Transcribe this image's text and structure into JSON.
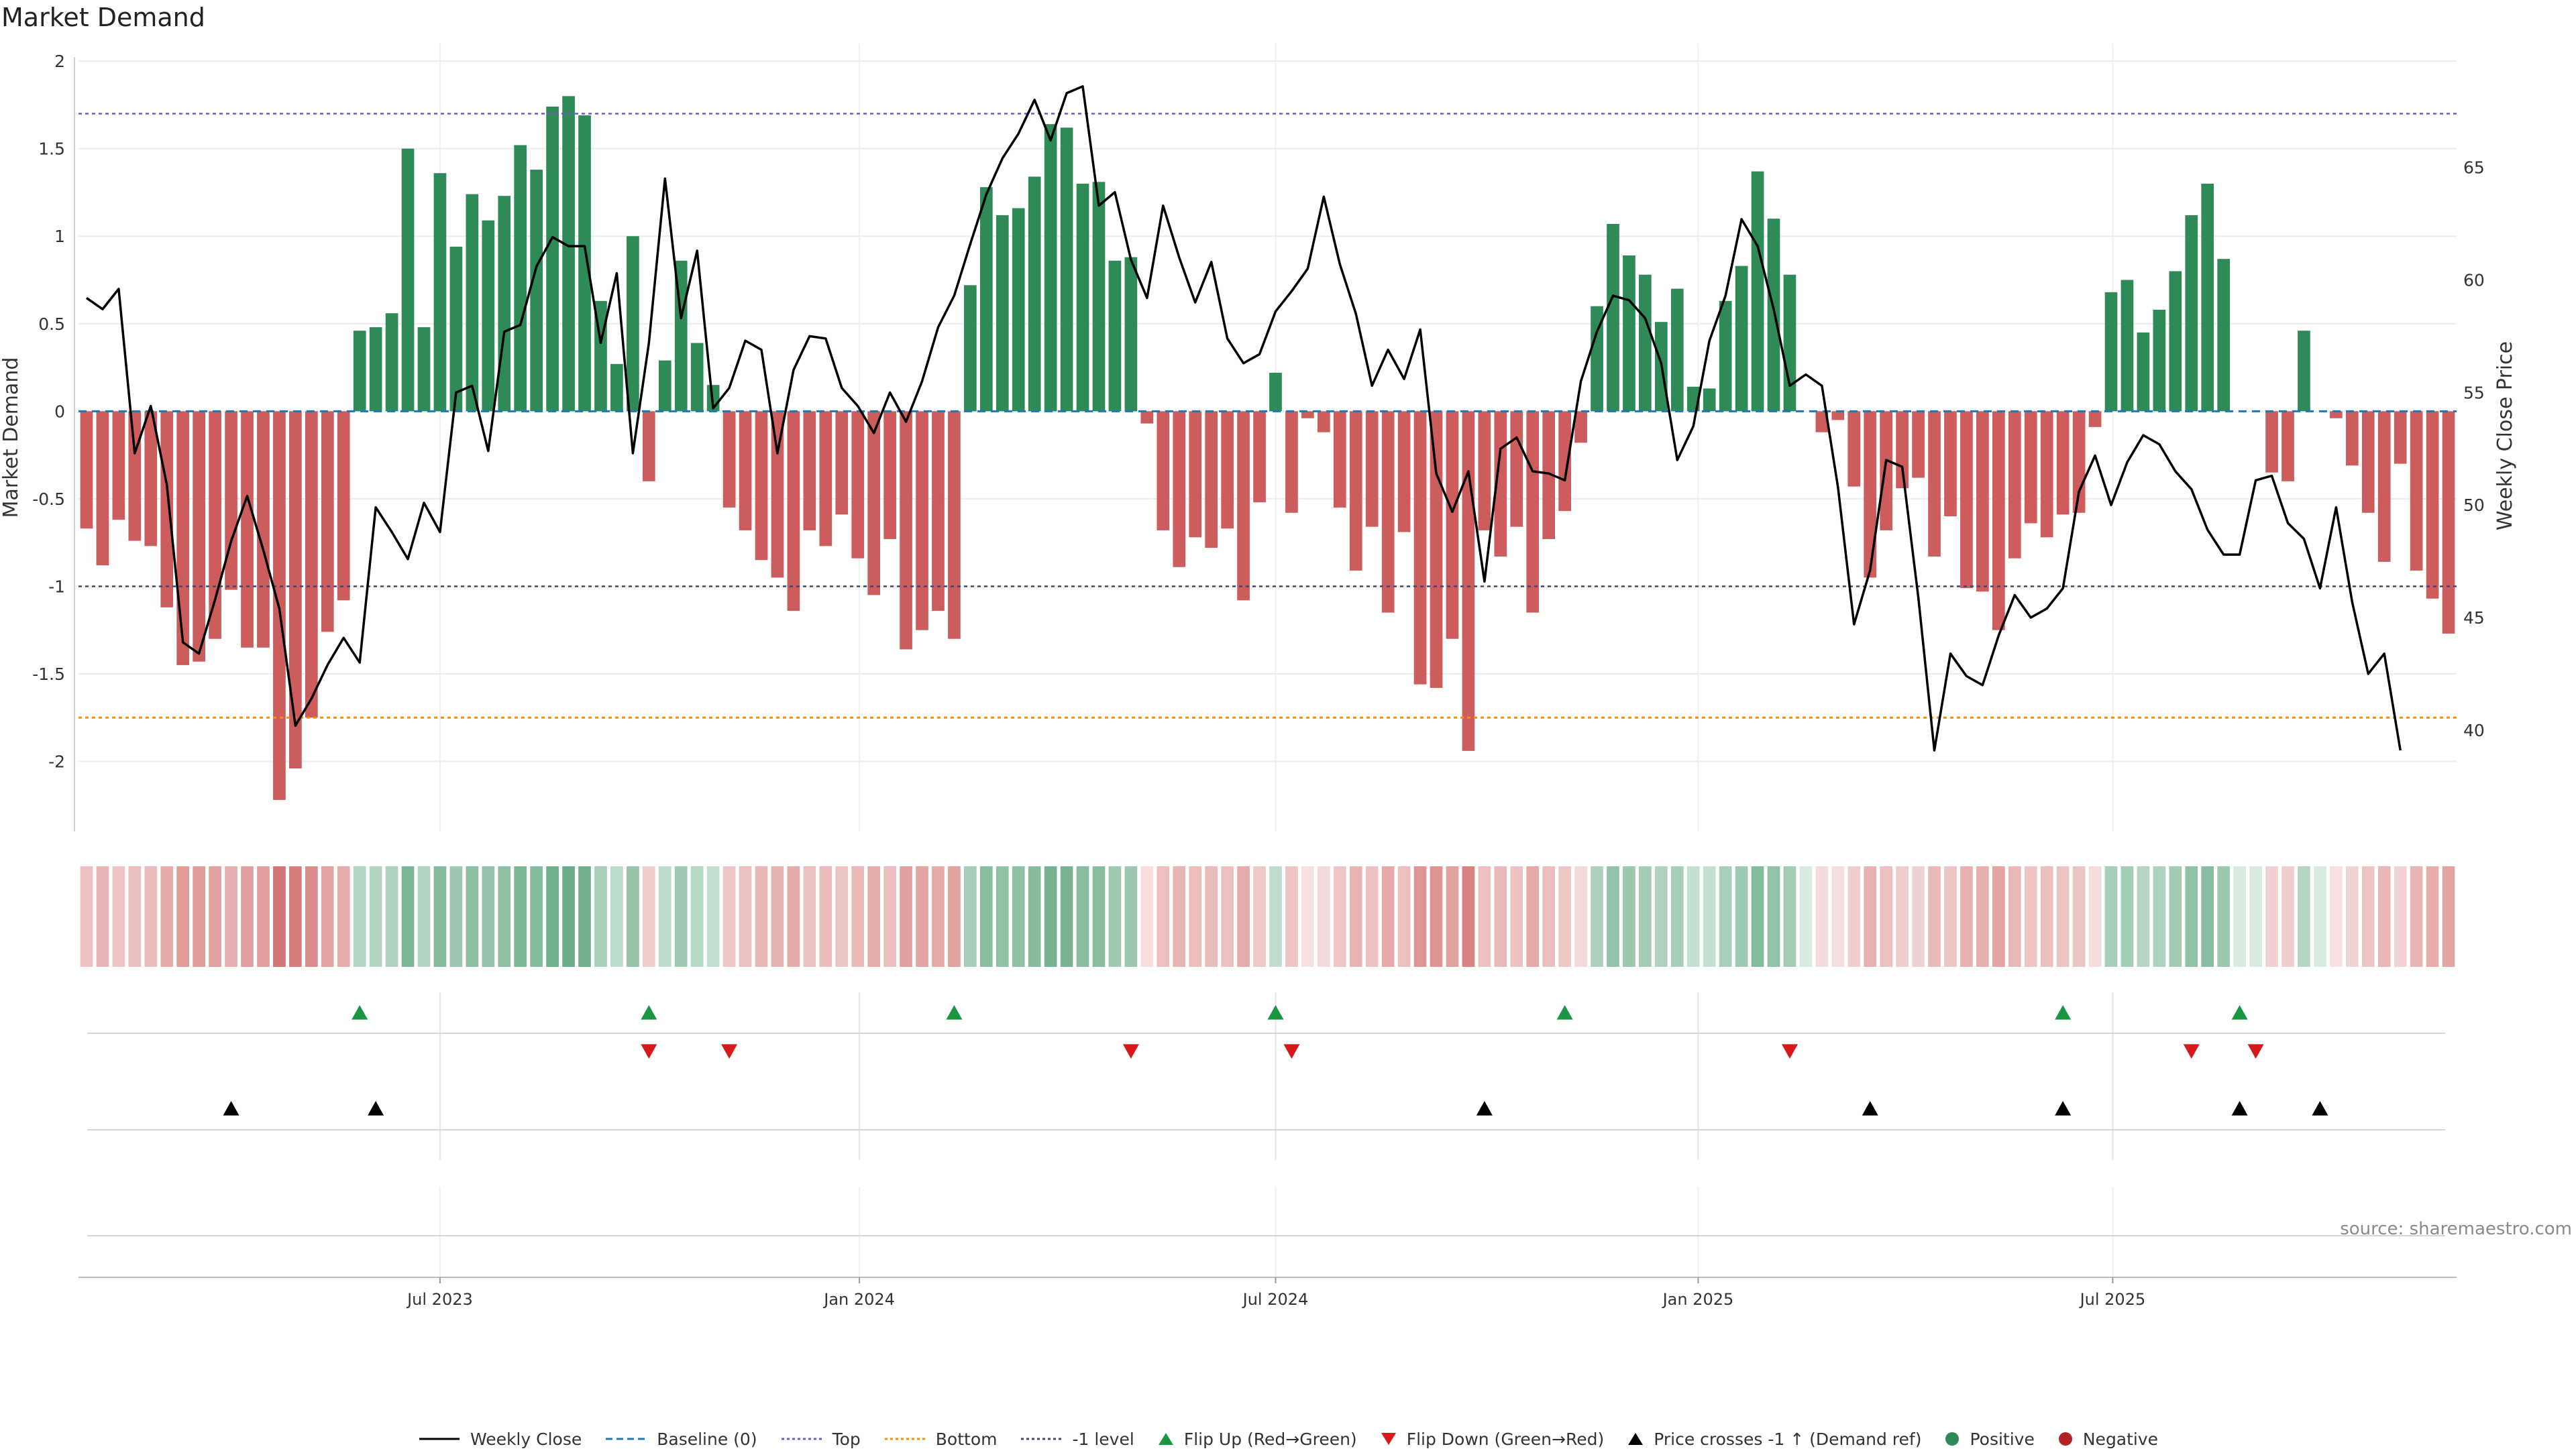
{
  "title": "Market Demand",
  "source": "source: sharemaestro.com",
  "colors": {
    "positive": "#2e8b57",
    "negative": "#cd5c5c",
    "price_line": "#000000",
    "baseline": "#1f77b4",
    "top": "#6a5acd",
    "bottom": "#ff8c00",
    "minus_one": "#444477",
    "flip_up": "#1a9641",
    "flip_down": "#d7191c",
    "cross": "#000000"
  },
  "legend": [
    {
      "label": "Weekly Close",
      "icon": "line-solid",
      "color": "#000000"
    },
    {
      "label": "Baseline (0)",
      "icon": "line-dashed",
      "color": "#1f77b4"
    },
    {
      "label": "Top",
      "icon": "line-dotted",
      "color": "#6a5acd"
    },
    {
      "label": "Bottom",
      "icon": "line-dotted",
      "color": "#ff8c00"
    },
    {
      "label": "-1 level",
      "icon": "line-dotted",
      "color": "#444477"
    },
    {
      "label": "Flip Up (Red→Green)",
      "icon": "triangle-up",
      "color": "#1a9641"
    },
    {
      "label": "Flip Down (Green→Red)",
      "icon": "triangle-down",
      "color": "#d7191c"
    },
    {
      "label": "Price crosses -1 ↑ (Demand ref)",
      "icon": "triangle-up",
      "color": "#000000"
    },
    {
      "label": "Positive",
      "icon": "circle",
      "color": "#2e8b57"
    },
    {
      "label": "Negative",
      "icon": "circle",
      "color": "#b22222"
    }
  ],
  "chart_data": {
    "type": "bar",
    "x_ticks": [
      "Jul 2023",
      "Jan 2024",
      "Jul 2024",
      "Jan 2025",
      "Jul 2025"
    ],
    "x_tick_weeks": [
      22.5,
      48.6,
      74.5,
      100.8,
      126.6
    ],
    "left_axis": {
      "label": "Market Demand",
      "ylim": [
        -2.4,
        2.1
      ],
      "ticks": [
        2,
        1.5,
        1,
        0.5,
        0,
        -0.5,
        -1,
        -1.5,
        -2
      ]
    },
    "right_axis": {
      "label": "Weekly Close Price",
      "ylim": [
        35.5,
        70.5
      ],
      "ticks": [
        65,
        60,
        55,
        50,
        45,
        40
      ]
    },
    "reference_lines": {
      "baseline": 0,
      "top": 1.7,
      "bottom": -1.75,
      "minus_one": -1.0
    },
    "grid": true,
    "legend_position": "bottom-center",
    "series": [
      {
        "name": "Market Demand",
        "type": "bar",
        "values": [
          -0.67,
          -0.88,
          -0.62,
          -0.74,
          -0.77,
          -1.12,
          -1.45,
          -1.43,
          -1.3,
          -1.02,
          -1.35,
          -1.35,
          -2.22,
          -2.04,
          -1.75,
          -1.26,
          -1.08,
          0.46,
          0.48,
          0.56,
          1.5,
          0.48,
          1.36,
          0.94,
          1.24,
          1.09,
          1.23,
          1.52,
          1.38,
          1.74,
          1.8,
          1.69,
          0.63,
          0.27,
          1.0,
          -0.4,
          0.29,
          0.86,
          0.39,
          0.15,
          -0.55,
          -0.68,
          -0.85,
          -0.95,
          -1.14,
          -0.68,
          -0.77,
          -0.59,
          -0.84,
          -1.05,
          -0.73,
          -1.36,
          -1.25,
          -1.14,
          -1.3,
          0.72,
          1.28,
          1.12,
          1.16,
          1.34,
          1.64,
          1.62,
          1.3,
          1.31,
          0.86,
          0.88,
          -0.07,
          -0.68,
          -0.89,
          -0.72,
          -0.78,
          -0.67,
          -1.08,
          -0.52,
          0.22,
          -0.58,
          -0.04,
          -0.12,
          -0.55,
          -0.91,
          -0.66,
          -1.15,
          -0.69,
          -1.56,
          -1.58,
          -1.3,
          -1.94,
          -0.68,
          -0.83,
          -0.66,
          -1.15,
          -0.73,
          -0.57,
          -0.18,
          0.6,
          1.07,
          0.89,
          0.78,
          0.51,
          0.7,
          0.14,
          0.13,
          0.63,
          0.83,
          1.37,
          1.1,
          0.78,
          0.0,
          -0.12,
          -0.05,
          -0.43,
          -0.95,
          -0.68,
          -0.44,
          -0.38,
          -0.83,
          -0.6,
          -1.01,
          -1.03,
          -1.25,
          -0.84,
          -0.64,
          -0.72,
          -0.59,
          -0.58,
          -0.09,
          0.68,
          0.75,
          0.45,
          0.58,
          0.8,
          1.12,
          1.3,
          0.87,
          0.0,
          0.0,
          -0.35,
          -0.4,
          0.46,
          0.0,
          -0.04,
          -0.31,
          -0.58,
          -0.86,
          -0.3,
          -0.91,
          -1.07,
          -1.27
        ]
      },
      {
        "name": "Weekly Close",
        "type": "line",
        "values": [
          59.2,
          58.7,
          59.6,
          52.3,
          54.4,
          50.9,
          43.9,
          43.4,
          45.8,
          48.4,
          50.4,
          48.0,
          45.4,
          40.2,
          41.4,
          42.9,
          44.1,
          43.0,
          49.9,
          48.8,
          47.6,
          50.1,
          48.8,
          55.0,
          55.3,
          52.4,
          57.7,
          58.0,
          60.6,
          61.9,
          61.5,
          61.5,
          57.2,
          60.3,
          52.3,
          57.2,
          64.5,
          58.3,
          61.3,
          54.3,
          55.2,
          57.3,
          56.9,
          52.3,
          56.0,
          57.5,
          57.4,
          55.2,
          54.4,
          53.2,
          55.0,
          53.7,
          55.5,
          57.9,
          59.3,
          61.6,
          63.8,
          65.4,
          66.5,
          68.0,
          66.2,
          68.3,
          68.6,
          63.3,
          63.9,
          60.9,
          59.2,
          63.3,
          61.0,
          59.0,
          60.8,
          57.4,
          56.3,
          56.7,
          58.6,
          59.5,
          60.5,
          63.7,
          60.7,
          58.5,
          55.3,
          56.9,
          55.6,
          57.8,
          51.4,
          49.7,
          51.5,
          46.6,
          52.5,
          53.0,
          51.5,
          51.4,
          51.1,
          55.5,
          57.7,
          59.3,
          59.1,
          58.3,
          56.3,
          52.0,
          53.5,
          57.3,
          59.3,
          62.7,
          61.5,
          58.7,
          55.3,
          55.8,
          55.3,
          50.8,
          44.7,
          47.1,
          52.0,
          51.7,
          45.9,
          39.1,
          43.4,
          42.4,
          42.0,
          44.2,
          46.0,
          45.0,
          45.4,
          46.3,
          50.6,
          52.2,
          50.0,
          51.9,
          53.1,
          52.7,
          51.5,
          50.7,
          48.9,
          47.8,
          47.8,
          51.1,
          51.3,
          49.2,
          48.5,
          46.3,
          49.9,
          45.7,
          42.5,
          43.4,
          39.1
        ]
      }
    ],
    "events": {
      "flip_up": [
        17,
        35,
        54,
        74,
        92,
        123,
        134
      ],
      "flip_down": [
        35,
        40,
        65,
        75,
        106,
        131,
        135
      ],
      "price_cross_up": [
        9,
        18,
        87,
        111,
        123,
        134,
        139
      ]
    }
  }
}
